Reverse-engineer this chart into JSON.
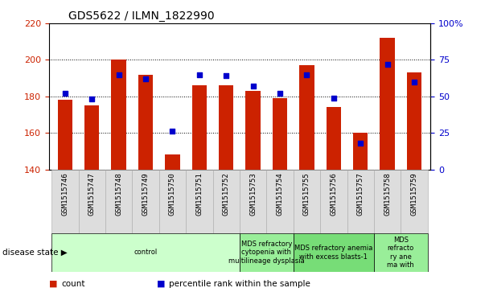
{
  "title": "GDS5622 / ILMN_1822990",
  "samples": [
    "GSM1515746",
    "GSM1515747",
    "GSM1515748",
    "GSM1515749",
    "GSM1515750",
    "GSM1515751",
    "GSM1515752",
    "GSM1515753",
    "GSM1515754",
    "GSM1515755",
    "GSM1515756",
    "GSM1515757",
    "GSM1515758",
    "GSM1515759"
  ],
  "counts": [
    178,
    175,
    200,
    192,
    148,
    186,
    186,
    183,
    179,
    197,
    174,
    160,
    212,
    193
  ],
  "percentile_ranks": [
    52,
    48,
    65,
    62,
    26,
    65,
    64,
    57,
    52,
    65,
    49,
    18,
    72,
    60
  ],
  "ylim_left": [
    140,
    220
  ],
  "ylim_right": [
    0,
    100
  ],
  "yticks_left": [
    140,
    160,
    180,
    200,
    220
  ],
  "yticks_right": [
    0,
    25,
    50,
    75,
    100
  ],
  "bar_color": "#CC2200",
  "dot_color": "#0000CC",
  "bar_bottom": 140,
  "groups": [
    {
      "label": "control",
      "start": 0,
      "end": 7,
      "color": "#CCFFCC"
    },
    {
      "label": "MDS refractory\ncytopenia with\nmultilineage dysplasia",
      "start": 7,
      "end": 9,
      "color": "#99EE99"
    },
    {
      "label": "MDS refractory anemia\nwith excess blasts-1",
      "start": 9,
      "end": 12,
      "color": "#77DD77"
    },
    {
      "label": "MDS\nrefracto\nry ane\nma with",
      "start": 12,
      "end": 14,
      "color": "#99EE99"
    }
  ],
  "disease_state_label": "disease state",
  "legend_items": [
    {
      "label": "count",
      "color": "#CC2200"
    },
    {
      "label": "percentile rank within the sample",
      "color": "#0000CC"
    }
  ],
  "background_color": "#FFFFFF",
  "grid_color": "#000000",
  "tick_label_color_left": "#CC2200",
  "tick_label_color_right": "#0000CC",
  "ytick_labels_right": [
    "0",
    "25",
    "50",
    "75",
    "100%"
  ]
}
